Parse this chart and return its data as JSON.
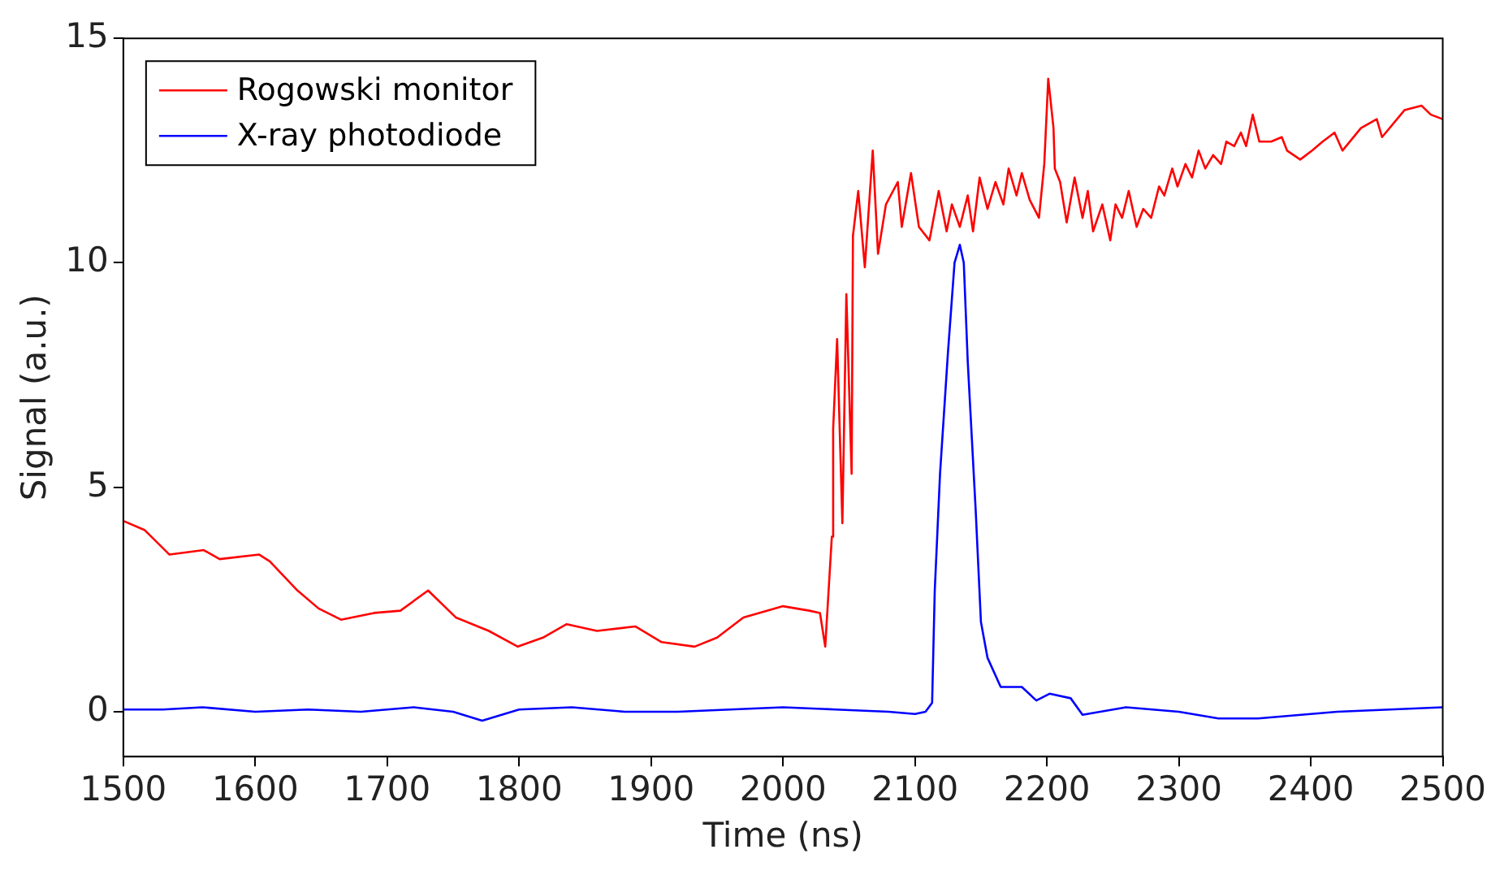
{
  "chart_data": {
    "type": "line",
    "xlabel": "Time (ns)",
    "ylabel": "Signal (a.u.)",
    "xlim": [
      1500,
      2500
    ],
    "xticks": [
      1500,
      1600,
      1700,
      1800,
      1900,
      2000,
      2100,
      2200,
      2300,
      2400,
      2500
    ],
    "ylim": [
      -1,
      15
    ],
    "yticks": [
      0,
      5,
      10,
      15
    ],
    "grid": false,
    "legend": "top left",
    "marker": "none",
    "line_style": "solid",
    "series": [
      {
        "name": "Rogowski monitor",
        "color": "#ff0000",
        "x": [
          1500,
          1516,
          1535,
          1561,
          1573,
          1603,
          1611,
          1632,
          1648,
          1665,
          1690,
          1710,
          1731,
          1752,
          1777,
          1799,
          1818,
          1836,
          1859,
          1888,
          1908,
          1933,
          1950,
          1970,
          2000,
          2020,
          2028,
          2032,
          2037,
          2038,
          2041,
          2045,
          2048,
          2052,
          2053,
          2057,
          2062,
          2068,
          2072,
          2078,
          2087,
          2090,
          2097,
          2103,
          2111,
          2118,
          2124,
          2128,
          2134,
          2140,
          2144,
          2149,
          2155,
          2161,
          2167,
          2171,
          2177,
          2181,
          2187,
          2194,
          2198,
          2201,
          2205,
          2206,
          2210,
          2215,
          2221,
          2227,
          2231,
          2235,
          2242,
          2248,
          2252,
          2257,
          2262,
          2268,
          2273,
          2279,
          2285,
          2289,
          2295,
          2299,
          2305,
          2310,
          2315,
          2320,
          2326,
          2332,
          2336,
          2342,
          2347,
          2351,
          2356,
          2361,
          2370,
          2378,
          2382,
          2392,
          2401,
          2409,
          2418,
          2424,
          2438,
          2450,
          2454,
          2471,
          2484,
          2491,
          2500
        ],
        "values": [
          4.25,
          4.05,
          3.5,
          3.6,
          3.4,
          3.5,
          3.35,
          2.7,
          2.3,
          2.05,
          2.2,
          2.25,
          2.7,
          2.1,
          1.8,
          1.45,
          1.65,
          1.95,
          1.8,
          1.9,
          1.55,
          1.45,
          1.65,
          2.1,
          2.35,
          2.25,
          2.2,
          1.45,
          3.9,
          6.3,
          8.3,
          4.2,
          9.3,
          5.3,
          10.6,
          11.6,
          9.9,
          12.5,
          10.2,
          11.3,
          11.8,
          10.8,
          12.0,
          10.8,
          10.5,
          11.6,
          10.7,
          11.3,
          10.8,
          11.5,
          10.7,
          11.9,
          11.2,
          11.8,
          11.3,
          12.1,
          11.5,
          12.0,
          11.4,
          11.0,
          12.2,
          14.1,
          13.0,
          12.1,
          11.8,
          10.9,
          11.9,
          11.0,
          11.6,
          10.7,
          11.3,
          10.5,
          11.3,
          11.0,
          11.6,
          10.8,
          11.2,
          11.0,
          11.7,
          11.5,
          12.1,
          11.7,
          12.2,
          11.9,
          12.5,
          12.1,
          12.4,
          12.2,
          12.7,
          12.6,
          12.9,
          12.6,
          13.3,
          12.7,
          12.7,
          12.8,
          12.5,
          12.3,
          12.5,
          12.7,
          12.9,
          12.5,
          13.0,
          13.2,
          12.8,
          13.4,
          13.5,
          13.3,
          13.2
        ]
      },
      {
        "name": "X-ray photodiode",
        "color": "#0000ff",
        "x": [
          1500,
          1530,
          1560,
          1600,
          1640,
          1680,
          1720,
          1750,
          1772,
          1800,
          1840,
          1880,
          1920,
          1960,
          2000,
          2040,
          2080,
          2100,
          2108,
          2113,
          2115,
          2119,
          2125,
          2130,
          2134,
          2137,
          2140,
          2146,
          2150,
          2155,
          2165,
          2181,
          2192,
          2202,
          2218,
          2227,
          2260,
          2300,
          2330,
          2360,
          2400,
          2420,
          2460,
          2500
        ],
        "values": [
          0.05,
          0.05,
          0.1,
          0.0,
          0.05,
          0.0,
          0.1,
          0.0,
          -0.2,
          0.05,
          0.1,
          0.0,
          0.0,
          0.05,
          0.1,
          0.05,
          0.0,
          -0.05,
          0.0,
          0.2,
          2.7,
          5.3,
          8.0,
          10.0,
          10.4,
          10.0,
          7.8,
          4.5,
          2.0,
          1.2,
          0.55,
          0.55,
          0.25,
          0.4,
          0.3,
          -0.07,
          0.1,
          0.0,
          -0.15,
          -0.15,
          -0.05,
          0.0,
          0.05,
          0.1
        ]
      }
    ]
  }
}
